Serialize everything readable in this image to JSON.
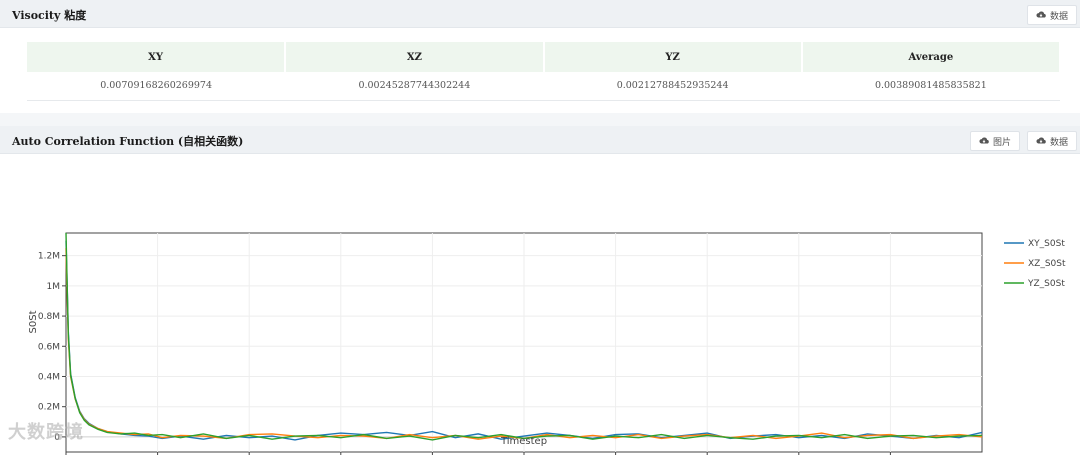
{
  "viscosity": {
    "title": "Visocity 粘度",
    "data_button": "数据",
    "columns": [
      "XY",
      "XZ",
      "YZ",
      "Average"
    ],
    "values": [
      "0.00709168260269974",
      "0.00245287744302244",
      "0.00212788452935244",
      "0.00389081485835821"
    ]
  },
  "acf": {
    "title": "Auto Correlation Function (自相关函数)",
    "image_button": "图片",
    "data_button": "数据"
  },
  "icons": {
    "download": "cloud-download-icon"
  },
  "colors": {
    "xy": "#1f77b4",
    "xz": "#ff7f0e",
    "yz": "#2ca02c"
  },
  "watermark": "大数跨境",
  "chart_data": {
    "type": "line",
    "xlabel": "Timestep",
    "ylabel": "S0St",
    "xlim": [
      0,
      20000
    ],
    "ylim": [
      -100000,
      1350000
    ],
    "xticks": [
      0,
      2000,
      4000,
      6000,
      8000,
      10000,
      12000,
      14000,
      16000,
      18000
    ],
    "xtick_labels": [
      "0",
      "2k",
      "4k",
      "6k",
      "8k",
      "10k",
      "12k",
      "14k",
      "16k",
      "18k"
    ],
    "yticks": [
      0,
      200000,
      400000,
      600000,
      800000,
      1000000,
      1200000
    ],
    "ytick_labels": [
      "0",
      "0.2M",
      "0.4M",
      "0.6M",
      "0.8M",
      "1M",
      "1.2M"
    ],
    "grid": true,
    "legend_position": "right",
    "series": [
      {
        "name": "XY_S0St",
        "x": [
          0,
          50,
          100,
          200,
          300,
          400,
          500,
          700,
          900,
          1200,
          1500,
          1800,
          2100,
          2500,
          3000,
          3500,
          4000,
          4500,
          5000,
          5500,
          6000,
          6500,
          7000,
          7500,
          8000,
          8500,
          9000,
          9500,
          10000,
          10500,
          11000,
          11500,
          12000,
          12500,
          13000,
          13500,
          14000,
          14500,
          15000,
          15500,
          16000,
          16500,
          17000,
          17500,
          18000,
          18500,
          19000,
          19500,
          20000
        ],
        "y": [
          1300000,
          700000,
          420000,
          260000,
          170000,
          120000,
          90000,
          55000,
          35000,
          20000,
          10000,
          5000,
          -10000,
          5000,
          -15000,
          10000,
          -5000,
          5000,
          -20000,
          10000,
          25000,
          15000,
          30000,
          10000,
          35000,
          -5000,
          20000,
          -15000,
          5000,
          25000,
          10000,
          -10000,
          15000,
          20000,
          -5000,
          10000,
          25000,
          -10000,
          5000,
          15000,
          -5000,
          10000,
          -10000,
          20000,
          5000,
          -10000,
          10000,
          -5000,
          30000
        ]
      },
      {
        "name": "XZ_S0St",
        "x": [
          0,
          50,
          100,
          200,
          300,
          400,
          500,
          700,
          900,
          1200,
          1500,
          1800,
          2100,
          2500,
          3000,
          3500,
          4000,
          4500,
          5000,
          5500,
          6000,
          6500,
          7000,
          7500,
          8000,
          8500,
          9000,
          9500,
          10000,
          10500,
          11000,
          11500,
          12000,
          12500,
          13000,
          13500,
          14000,
          14500,
          15000,
          15500,
          16000,
          16500,
          17000,
          17500,
          18000,
          18500,
          19000,
          19500,
          20000
        ],
        "y": [
          1250000,
          650000,
          400000,
          250000,
          165000,
          115000,
          85000,
          55000,
          35000,
          25000,
          15000,
          20000,
          -5000,
          10000,
          5000,
          -10000,
          15000,
          20000,
          5000,
          -5000,
          10000,
          5000,
          -10000,
          15000,
          -5000,
          10000,
          -15000,
          5000,
          -10000,
          15000,
          -5000,
          10000,
          -5000,
          15000,
          -10000,
          5000,
          15000,
          -5000,
          10000,
          -10000,
          5000,
          25000,
          -5000,
          10000,
          15000,
          -10000,
          5000,
          15000,
          0
        ]
      },
      {
        "name": "YZ_S0St",
        "x": [
          0,
          50,
          100,
          200,
          300,
          400,
          500,
          700,
          900,
          1200,
          1500,
          1800,
          2100,
          2500,
          3000,
          3500,
          4000,
          4500,
          5000,
          5500,
          6000,
          6500,
          7000,
          7500,
          8000,
          8500,
          9000,
          9500,
          10000,
          10500,
          11000,
          11500,
          12000,
          12500,
          13000,
          13500,
          14000,
          14500,
          15000,
          15500,
          16000,
          16500,
          17000,
          17500,
          18000,
          18500,
          19000,
          19500,
          20000
        ],
        "y": [
          1350000,
          680000,
          410000,
          255000,
          160000,
          110000,
          80000,
          50000,
          30000,
          20000,
          25000,
          10000,
          15000,
          -5000,
          20000,
          -10000,
          10000,
          -15000,
          5000,
          10000,
          -5000,
          15000,
          -10000,
          5000,
          -20000,
          10000,
          -5000,
          15000,
          -10000,
          5000,
          10000,
          -15000,
          5000,
          -5000,
          15000,
          -10000,
          10000,
          -5000,
          -15000,
          5000,
          10000,
          -5000,
          15000,
          -10000,
          5000,
          10000,
          -5000,
          5000,
          10000
        ]
      }
    ]
  }
}
